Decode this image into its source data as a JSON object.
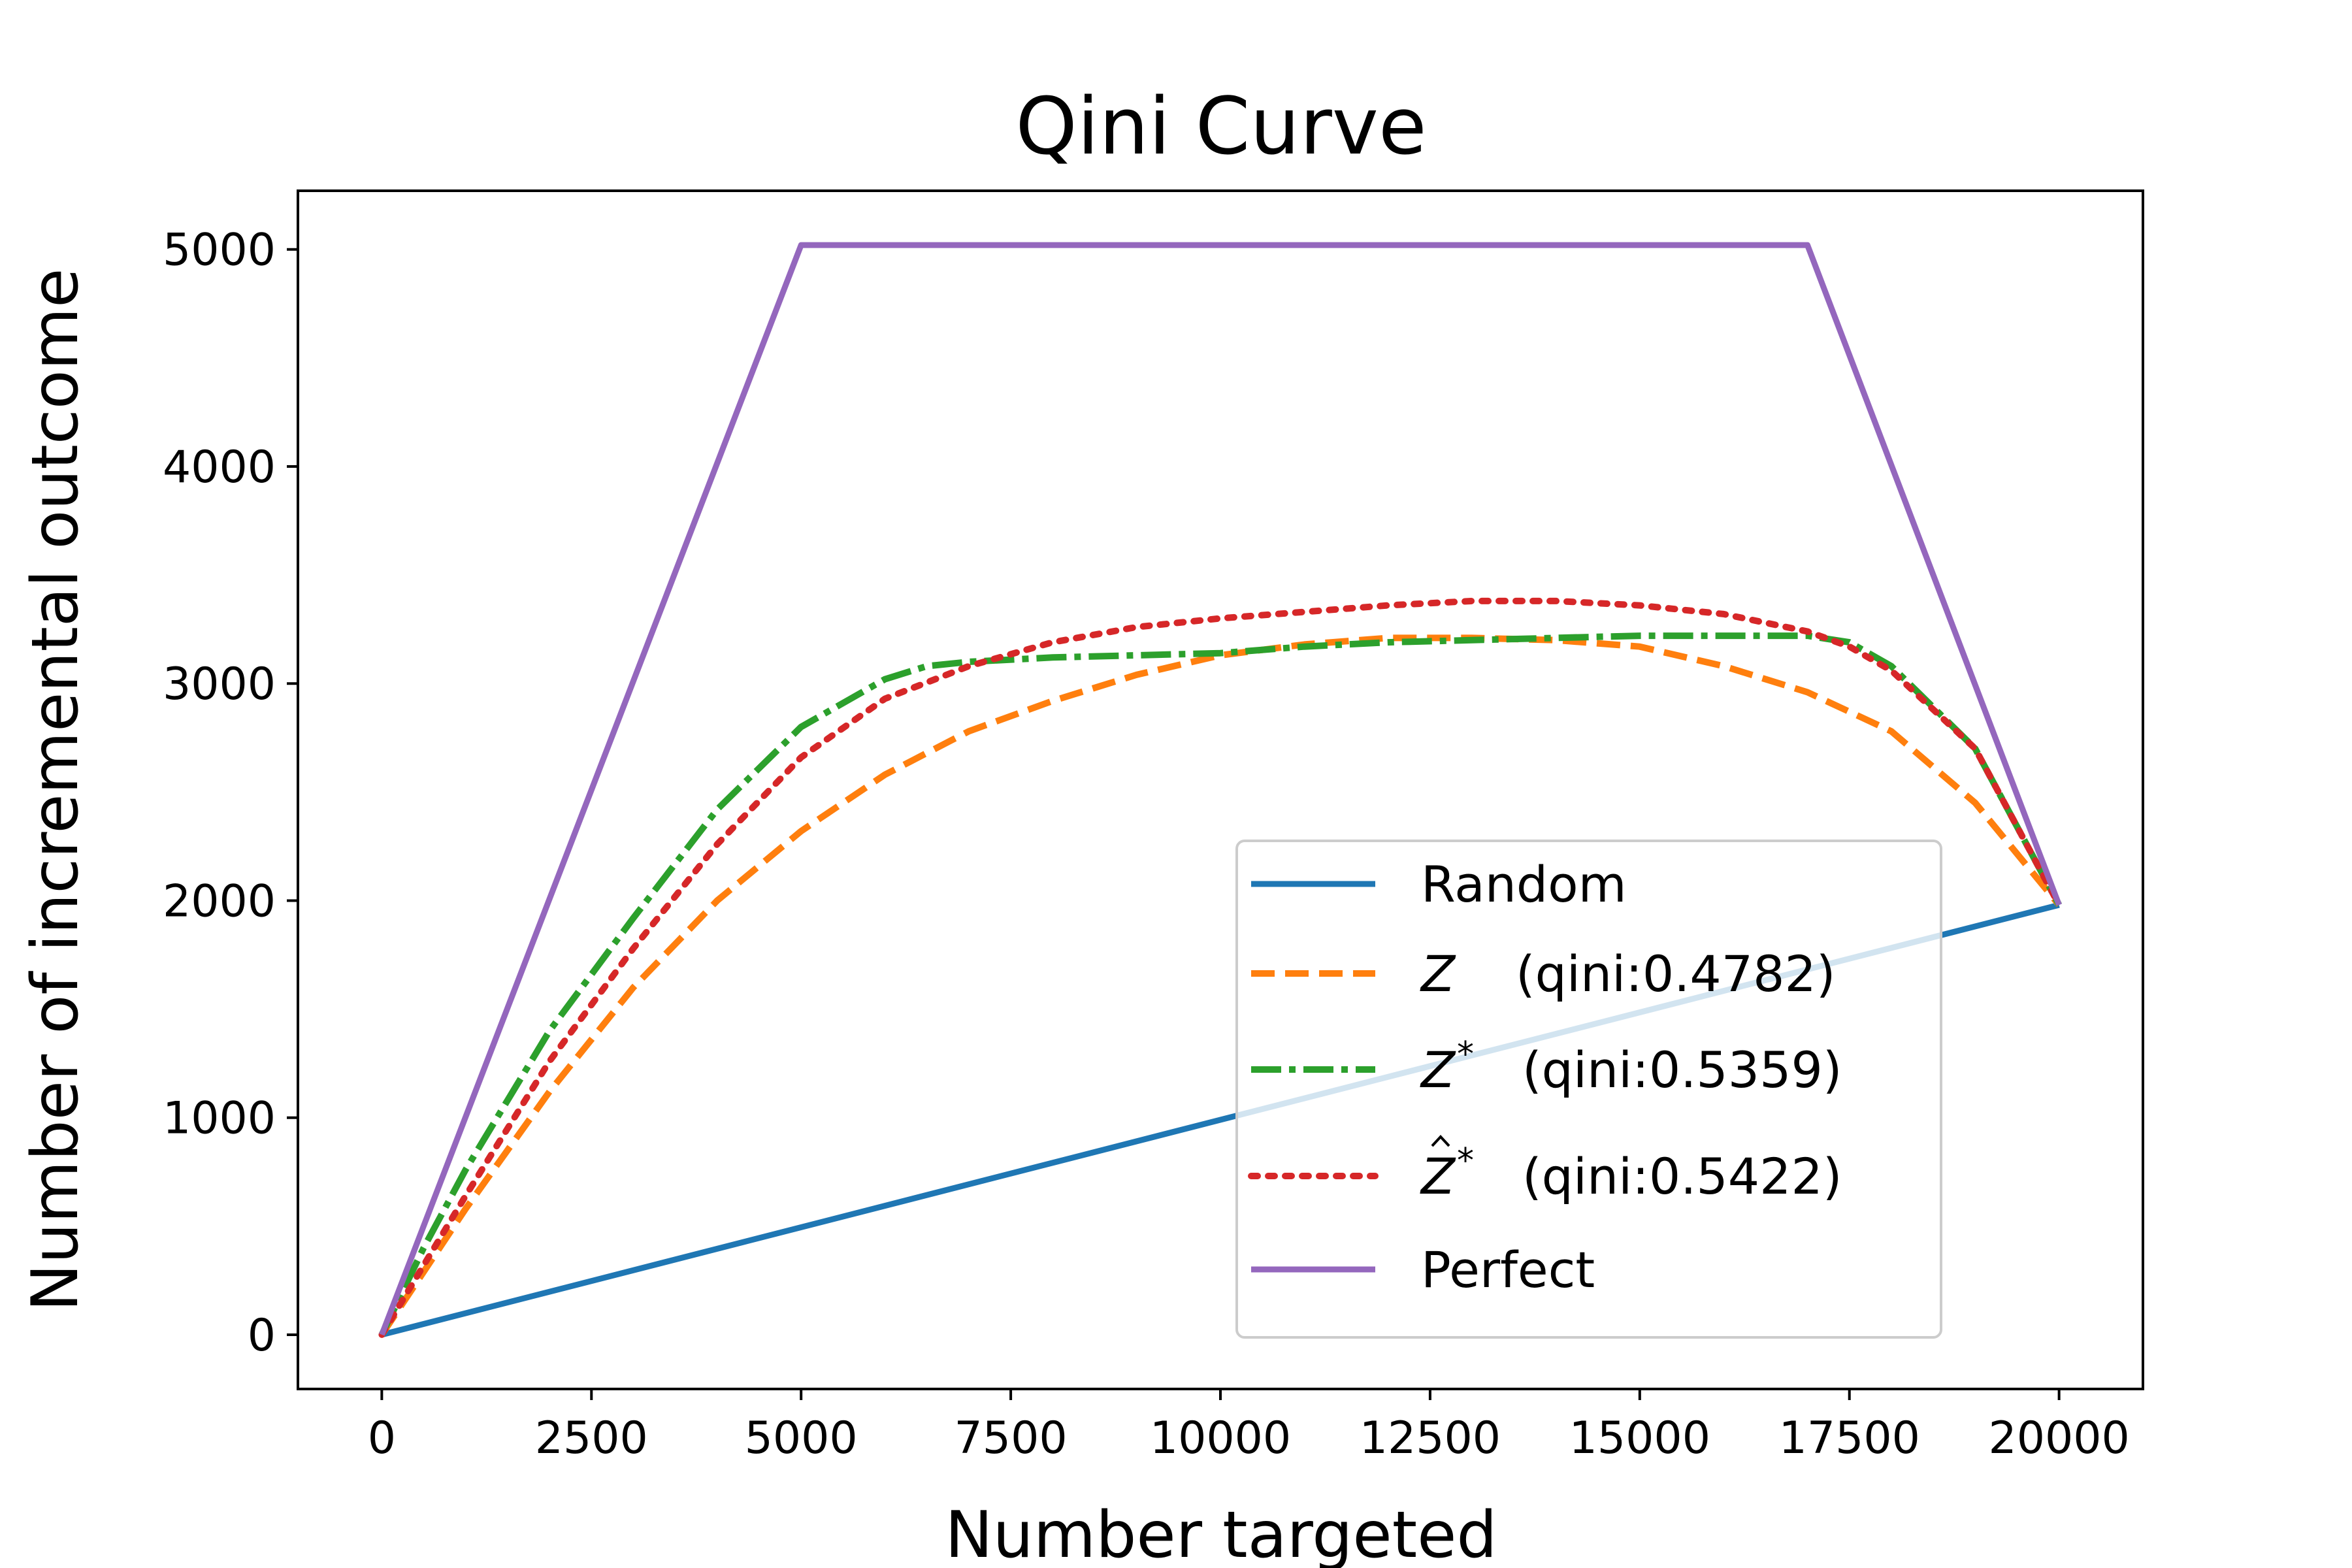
{
  "chart_data": {
    "type": "line",
    "title": "Qini Curve",
    "xlabel": "Number targeted",
    "ylabel": "Number of incremental outcome",
    "xlim": [
      -1000,
      21000
    ],
    "ylim": [
      -250,
      5270
    ],
    "xticks": [
      0,
      2500,
      5000,
      7500,
      10000,
      12500,
      15000,
      17500,
      20000
    ],
    "yticks": [
      0,
      1000,
      2000,
      3000,
      4000,
      5000
    ],
    "xtick_labels": [
      "0",
      "2500",
      "5000",
      "7500",
      "10000",
      "12500",
      "15000",
      "17500",
      "20000"
    ],
    "ytick_labels": [
      "0",
      "1000",
      "2000",
      "3000",
      "4000",
      "5000"
    ],
    "grid": false,
    "legend_position": "lower-right",
    "series": [
      {
        "name": "Random",
        "legend_symbol": "",
        "legend_sup": "",
        "legend_qini": "",
        "color": "#1f77b4",
        "style": "solid",
        "x": [
          0,
          20000
        ],
        "y": [
          0,
          1980
        ]
      },
      {
        "name": "Z",
        "legend_symbol": "Z",
        "legend_sup": "",
        "legend_qini": "(qini:0.4782)",
        "color": "#ff7f0e",
        "style": "dashed",
        "x": [
          0,
          1000,
          2000,
          3000,
          4000,
          5000,
          6000,
          7000,
          8000,
          9000,
          10000,
          11000,
          12000,
          13000,
          14000,
          15000,
          16000,
          17000,
          18000,
          19000,
          20000
        ],
        "y": [
          0,
          580,
          1120,
          1600,
          2000,
          2320,
          2580,
          2780,
          2920,
          3040,
          3130,
          3180,
          3210,
          3210,
          3200,
          3170,
          3080,
          2960,
          2780,
          2450,
          1980
        ]
      },
      {
        "name": "Z*",
        "legend_symbol": "Z",
        "legend_sup": "*",
        "legend_qini": "(qini:0.5359)",
        "color": "#2ca02c",
        "style": "dashdot",
        "x": [
          0,
          500,
          1000,
          2000,
          3000,
          4000,
          5000,
          6000,
          6500,
          7000,
          8000,
          9000,
          10000,
          11000,
          12000,
          13000,
          14000,
          15000,
          16000,
          17000,
          17500,
          18000,
          19000,
          20000
        ],
        "y": [
          0,
          400,
          760,
          1400,
          1920,
          2420,
          2800,
          3020,
          3080,
          3100,
          3120,
          3130,
          3140,
          3170,
          3190,
          3200,
          3210,
          3220,
          3220,
          3220,
          3190,
          3080,
          2700,
          1980
        ]
      },
      {
        "name": "Ẑ*",
        "legend_symbol": "Z",
        "legend_sup": "*",
        "legend_qini": "(qini:0.5422)",
        "color": "#d62728",
        "style": "dotted",
        "x": [
          0,
          500,
          1000,
          2000,
          3000,
          4000,
          5000,
          6000,
          7000,
          8000,
          9000,
          10000,
          11000,
          12000,
          13000,
          14000,
          15000,
          16000,
          17000,
          17500,
          18000,
          19000,
          20000
        ],
        "y": [
          0,
          320,
          640,
          1260,
          1780,
          2260,
          2660,
          2930,
          3080,
          3190,
          3260,
          3300,
          3330,
          3360,
          3380,
          3380,
          3360,
          3320,
          3240,
          3170,
          3060,
          2700,
          1980
        ]
      },
      {
        "name": "Perfect",
        "legend_symbol": "",
        "legend_sup": "",
        "legend_qini": "",
        "color": "#9467bd",
        "style": "solid",
        "x": [
          0,
          5000,
          17000,
          20000
        ],
        "y": [
          0,
          5020,
          5020,
          1980
        ]
      }
    ]
  }
}
